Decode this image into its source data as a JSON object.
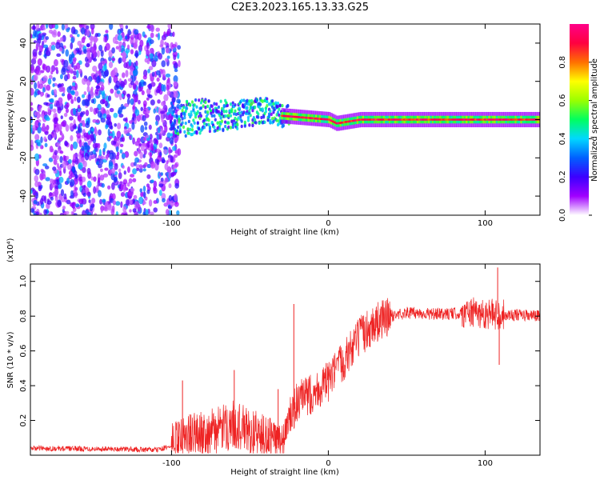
{
  "title": "C2E3.2023.165.13.33.G25",
  "chart_data": [
    {
      "type": "heatmap",
      "xlabel": "Height of straight line (km)",
      "ylabel": "Frequency (Hz)",
      "xlim": [
        -190,
        135
      ],
      "ylim": [
        -50,
        50
      ],
      "xticks": [
        "-100",
        "0",
        "100"
      ],
      "yticks": [
        "-40",
        "-20",
        "0",
        "20",
        "40"
      ],
      "colorbar": {
        "label": "Normalized spectral amplitude",
        "range": [
          0,
          1
        ],
        "ticks": [
          "0.0",
          "0.2",
          "0.4",
          "0.6",
          "0.8"
        ],
        "colors": [
          "#ffffff",
          "#a000ff",
          "#3c00ff",
          "#0060ff",
          "#00d8ff",
          "#00ff60",
          "#9aff00",
          "#ffff00",
          "#ff7000",
          "#ff0040",
          "#ff0088"
        ]
      },
      "ridge": [
        {
          "x": -100,
          "f": 0
        },
        {
          "x": -80,
          "f": 2
        },
        {
          "x": -60,
          "f": 2
        },
        {
          "x": -40,
          "f": 5
        },
        {
          "x": -30,
          "f": 2
        },
        {
          "x": -15,
          "f": 1
        },
        {
          "x": 0,
          "f": 0
        },
        {
          "x": 5,
          "f": -2
        },
        {
          "x": 20,
          "f": 0
        },
        {
          "x": 135,
          "f": 0
        }
      ]
    },
    {
      "type": "line",
      "xlabel": "Height of straight line (km)",
      "ylabel": "SNR (10 * v/v)",
      "yscale_label": "(x10⁴)",
      "xlim": [
        -190,
        135
      ],
      "ylim": [
        0,
        1.1
      ],
      "xticks": [
        "-100",
        "0",
        "100"
      ],
      "yticks": [
        "0.2",
        "0.4",
        "0.6",
        "0.8",
        "1.0"
      ],
      "color": "#ee2222",
      "trend": [
        {
          "x": -190,
          "y": 0.04
        },
        {
          "x": -130,
          "y": 0.035
        },
        {
          "x": -110,
          "y": 0.03
        },
        {
          "x": -100,
          "y": 0.05
        },
        {
          "x": -90,
          "y": 0.1
        },
        {
          "x": -70,
          "y": 0.14
        },
        {
          "x": -60,
          "y": 0.18
        },
        {
          "x": -50,
          "y": 0.13
        },
        {
          "x": -40,
          "y": 0.1
        },
        {
          "x": -30,
          "y": 0.05
        },
        {
          "x": -25,
          "y": 0.2
        },
        {
          "x": -20,
          "y": 0.3
        },
        {
          "x": -10,
          "y": 0.36
        },
        {
          "x": 0,
          "y": 0.42
        },
        {
          "x": 10,
          "y": 0.55
        },
        {
          "x": 20,
          "y": 0.68
        },
        {
          "x": 30,
          "y": 0.76
        },
        {
          "x": 40,
          "y": 0.8
        },
        {
          "x": 50,
          "y": 0.82
        },
        {
          "x": 70,
          "y": 0.81
        },
        {
          "x": 90,
          "y": 0.82
        },
        {
          "x": 110,
          "y": 0.81
        },
        {
          "x": 135,
          "y": 0.8
        }
      ],
      "spikes": [
        {
          "x": -93,
          "y": 0.43
        },
        {
          "x": -60,
          "y": 0.49
        },
        {
          "x": -32,
          "y": 0.38
        },
        {
          "x": -22,
          "y": 0.87
        },
        {
          "x": 108,
          "y": 1.08
        },
        {
          "x": 109,
          "y": 0.52
        }
      ]
    }
  ]
}
